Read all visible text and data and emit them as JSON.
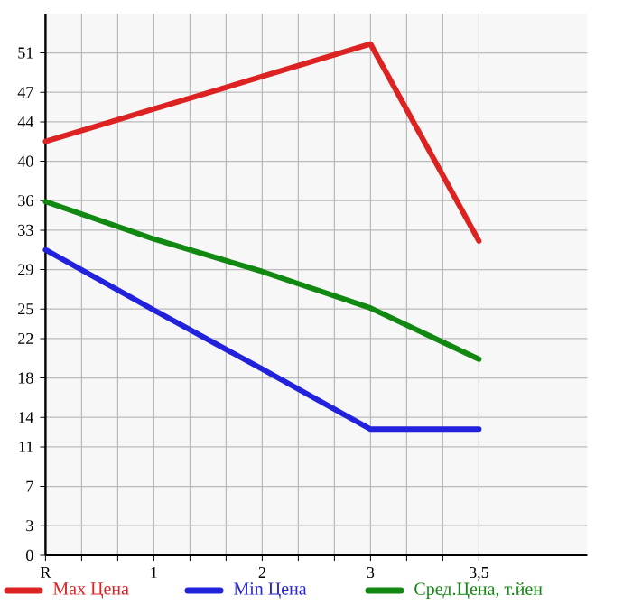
{
  "chart_data": {
    "type": "line",
    "categories": [
      "R",
      "1",
      "2",
      "3",
      "3,5"
    ],
    "ylim": [
      0,
      55
    ],
    "yticks": [
      0,
      3,
      7,
      11,
      14,
      18,
      22,
      25,
      29,
      33,
      36,
      40,
      44,
      47,
      51
    ],
    "series": [
      {
        "name": "Max Цена",
        "color": "#dd2222",
        "values": [
          42,
          45.3,
          48.6,
          51.9,
          31.9
        ]
      },
      {
        "name": "Min Цена",
        "color": "#2222dd",
        "values": [
          31,
          24.9,
          18.9,
          12.8,
          12.8
        ]
      },
      {
        "name": "Сред.Цена, т.йен",
        "color": "#118811",
        "values": [
          35.9,
          32.1,
          28.8,
          25.1,
          19.9
        ]
      }
    ],
    "grid": true,
    "legend": "bottom",
    "marker": "none",
    "line_style": "solid"
  }
}
